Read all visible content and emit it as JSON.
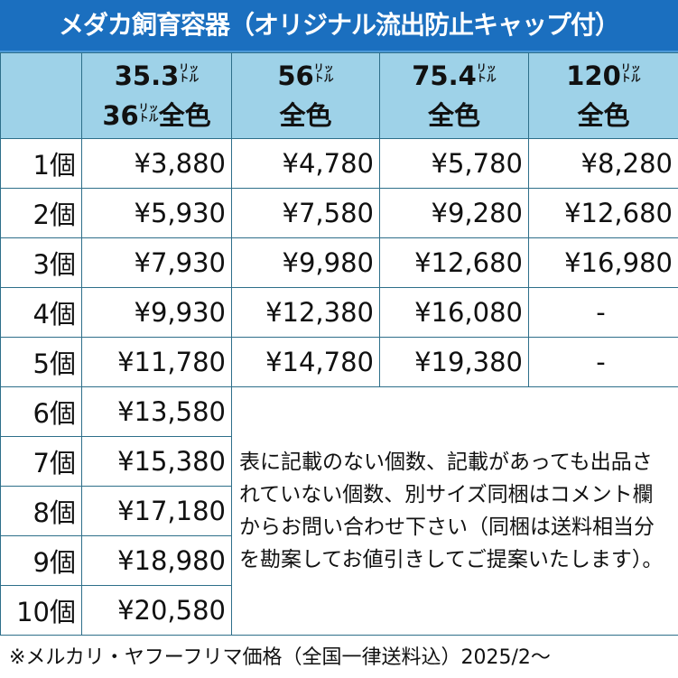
{
  "title": "メダカ飼育容器（オリジナル流出防止キャップ付）",
  "colors": {
    "title_bg": "#1b6fbf",
    "header_bg": "#9ed2e8",
    "border": "#2e6f8a"
  },
  "columns": [
    {
      "size": "35.3",
      "unit": [
        "リッ",
        "トル"
      ],
      "size2": "36",
      "unit2": [
        "リッ",
        "トル"
      ],
      "color_label": "全色"
    },
    {
      "size": "56",
      "unit": [
        "リッ",
        "トル"
      ],
      "color_label": "全色"
    },
    {
      "size": "75.4",
      "unit": [
        "リッ",
        "トル"
      ],
      "color_label": "全色"
    },
    {
      "size": "120",
      "unit": [
        "リッ",
        "トル"
      ],
      "color_label": "全色"
    }
  ],
  "rows": [
    {
      "count": "1個",
      "prices": [
        "¥3,880",
        "¥4,780",
        "¥5,780",
        "¥8,280"
      ]
    },
    {
      "count": "2個",
      "prices": [
        "¥5,930",
        "¥7,580",
        "¥9,280",
        "¥12,680"
      ]
    },
    {
      "count": "3個",
      "prices": [
        "¥7,930",
        "¥9,980",
        "¥12,680",
        "¥16,980"
      ]
    },
    {
      "count": "4個",
      "prices": [
        "¥9,930",
        "¥12,380",
        "¥16,080",
        "-"
      ]
    },
    {
      "count": "5個",
      "prices": [
        "¥11,780",
        "¥14,780",
        "¥19,380",
        "-"
      ]
    },
    {
      "count": "6個",
      "prices": [
        "¥13,580"
      ]
    },
    {
      "count": "7個",
      "prices": [
        "¥15,380"
      ]
    },
    {
      "count": "8個",
      "prices": [
        "¥17,180"
      ]
    },
    {
      "count": "9個",
      "prices": [
        "¥18,980"
      ]
    },
    {
      "count": "10個",
      "prices": [
        "¥20,580"
      ]
    }
  ],
  "note": "表に記載のない個数、記載があっても出品されていない個数、別サイズ同梱はコメント欄からお問い合わせ下さい（同梱は送料相当分を勘案してお値引きしてご提案いたします）。",
  "footer": "※メルカリ・ヤフーフリマ価格（全国一律送料込）2025/2〜"
}
